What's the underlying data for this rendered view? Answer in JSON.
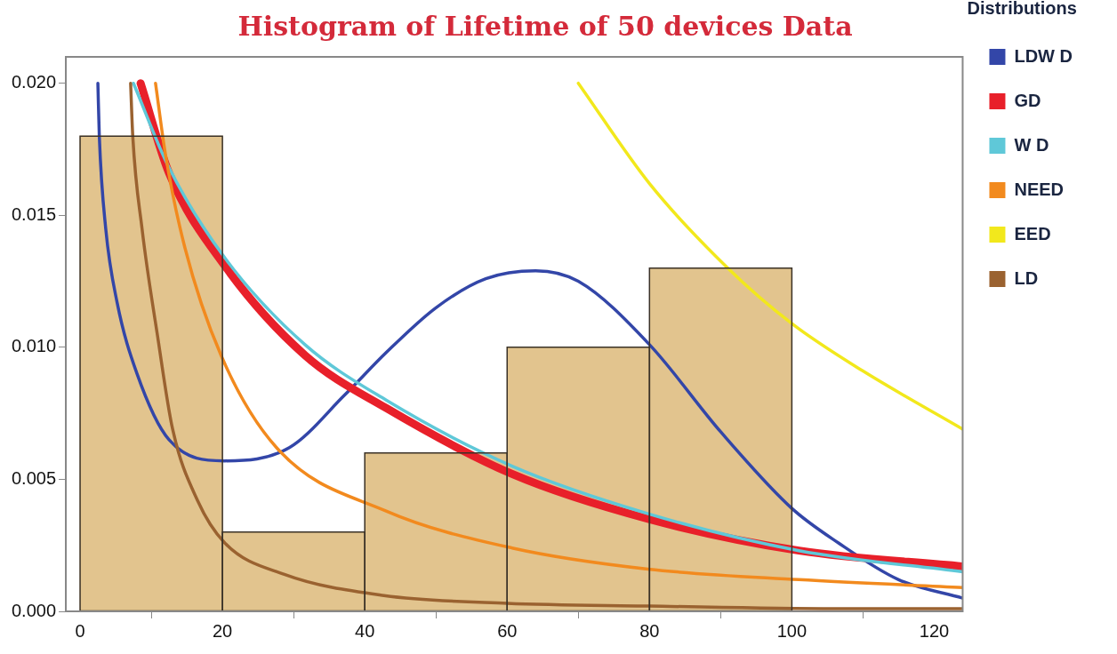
{
  "chart_data": {
    "type": "histogram",
    "title": "Histogram of Lifetime of 50 devices Data",
    "legend_title": "Distributions",
    "legend": "right",
    "grid": false,
    "bins": [
      0,
      20,
      40,
      60,
      80,
      100
    ],
    "values": [
      0.018,
      0.003,
      0.006,
      0.01,
      0.013
    ],
    "color": "#e2c48e",
    "xlim": [
      -2,
      124
    ],
    "xticks": [
      0,
      20,
      40,
      60,
      80,
      100,
      120
    ],
    "ylim": [
      0,
      0.021
    ],
    "yticks": [
      {
        "value": 0,
        "label": "0.000"
      },
      {
        "value": 0.005,
        "label": "0.005"
      },
      {
        "value": 0.01,
        "label": "0.010"
      },
      {
        "value": 0.015,
        "label": "0.015"
      },
      {
        "value": 0.02,
        "label": "0.020"
      }
    ],
    "series": [
      {
        "name": "LDW D",
        "type": "line",
        "color": "#3346a8",
        "x": [
          2.5,
          2.7,
          3.6,
          5.2,
          8,
          12.5,
          20.3,
          29.4,
          37.2,
          43,
          50,
          57,
          64,
          70,
          80,
          90,
          100,
          106.5,
          115,
          124
        ],
        "values": [
          0.02,
          0.018,
          0.0145,
          0.0117,
          0.009,
          0.0065,
          0.0057,
          0.0062,
          0.0082,
          0.0098,
          0.0115,
          0.0126,
          0.0129,
          0.0125,
          0.0101,
          0.0068,
          0.0039,
          0.0026,
          0.0012,
          0.0005
        ]
      },
      {
        "name": "GD",
        "type": "line",
        "color": "#e8202a",
        "x": [
          8.5,
          12.5,
          20.3,
          31.6,
          43,
          60.7,
          79.8,
          101,
          124
        ],
        "values": [
          0.02,
          0.0166,
          0.0131,
          0.0097,
          0.0077,
          0.0052,
          0.0035,
          0.0023,
          0.0017
        ]
      },
      {
        "name": "W D",
        "type": "line",
        "color": "#5fc8d8",
        "x": [
          7.5,
          12.5,
          20.3,
          31.6,
          43,
          60.7,
          79.8,
          101,
          124
        ],
        "values": [
          0.02,
          0.0168,
          0.0134,
          0.0101,
          0.008,
          0.0055,
          0.0037,
          0.0023,
          0.0015
        ]
      },
      {
        "name": "NEED",
        "type": "line",
        "color": "#f28a1e",
        "x": [
          10.6,
          12,
          14.7,
          19.8,
          27.6,
          43,
          60.7,
          79.8,
          101,
          124
        ],
        "values": [
          0.02,
          0.0173,
          0.0138,
          0.0097,
          0.0062,
          0.0038,
          0.0024,
          0.0016,
          0.0012,
          0.0009
        ]
      },
      {
        "name": "EED",
        "type": "line",
        "color": "#f2e81c",
        "x": [
          70,
          80,
          91,
          100,
          110,
          124
        ],
        "values": [
          0.02,
          0.0162,
          0.013,
          0.0109,
          0.0091,
          0.0069
        ]
      },
      {
        "name": "LD",
        "type": "line",
        "color": "#9a6230",
        "x": [
          7.1,
          7.4,
          8.7,
          10.9,
          13,
          16.5,
          20.3,
          28.7,
          42.7,
          60,
          80,
          106,
          124
        ],
        "values": [
          0.02,
          0.018,
          0.0145,
          0.0104,
          0.0069,
          0.0042,
          0.0026,
          0.0014,
          0.0006,
          0.0003,
          0.0002,
          0.0001,
          0.0001
        ]
      }
    ]
  }
}
